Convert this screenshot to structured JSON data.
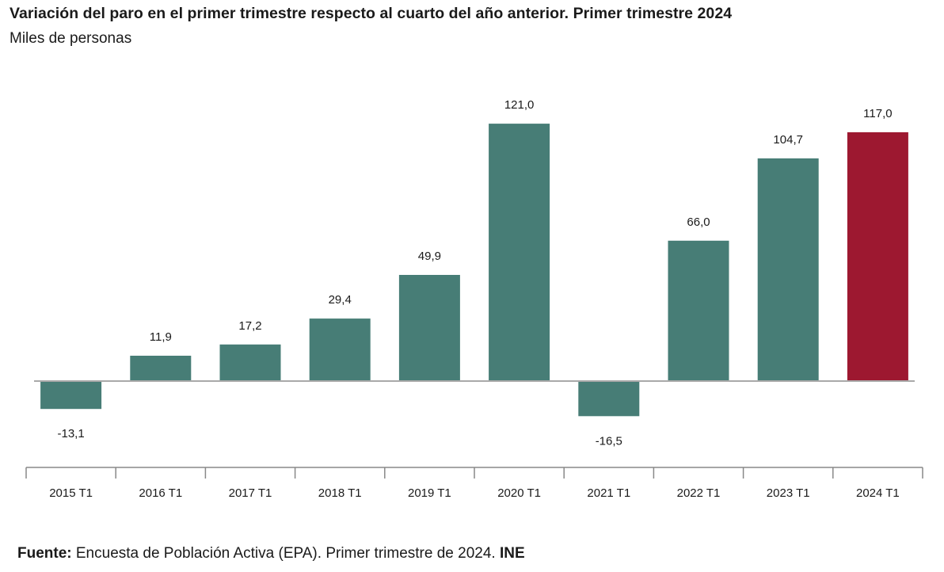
{
  "header": {
    "title": "Variación del paro en el primer trimestre respecto al cuarto del año anterior. Primer trimestre 2024",
    "subtitle": "Miles de personas"
  },
  "footer": {
    "source_label": "Fuente:",
    "source_text": " Encuesta de Población Activa (EPA). Primer trimestre de 2024. ",
    "source_org": "INE"
  },
  "colors": {
    "bar": "#477d76",
    "highlight": "#9d1830",
    "axis": "#888888"
  },
  "chart_data": {
    "type": "bar",
    "title": "Variación del paro en el primer trimestre respecto al cuarto del año anterior. Primer trimestre 2024",
    "subtitle": "Miles de personas",
    "categories": [
      "2015 T1",
      "2016 T1",
      "2017 T1",
      "2018 T1",
      "2019 T1",
      "2020 T1",
      "2021 T1",
      "2022 T1",
      "2023 T1",
      "2024 T1"
    ],
    "values": [
      -13.1,
      11.9,
      17.2,
      29.4,
      49.9,
      121.0,
      -16.5,
      66.0,
      104.7,
      117.0
    ],
    "value_labels": [
      "-13,1",
      "11,9",
      "17,2",
      "29,4",
      "49,9",
      "121,0",
      "-16,5",
      "66,0",
      "104,7",
      "117,0"
    ],
    "highlighted_category": "2024 T1",
    "xlabel": "",
    "ylabel": "",
    "ylim": [
      -30,
      130
    ],
    "grid": false,
    "legend": "none"
  }
}
